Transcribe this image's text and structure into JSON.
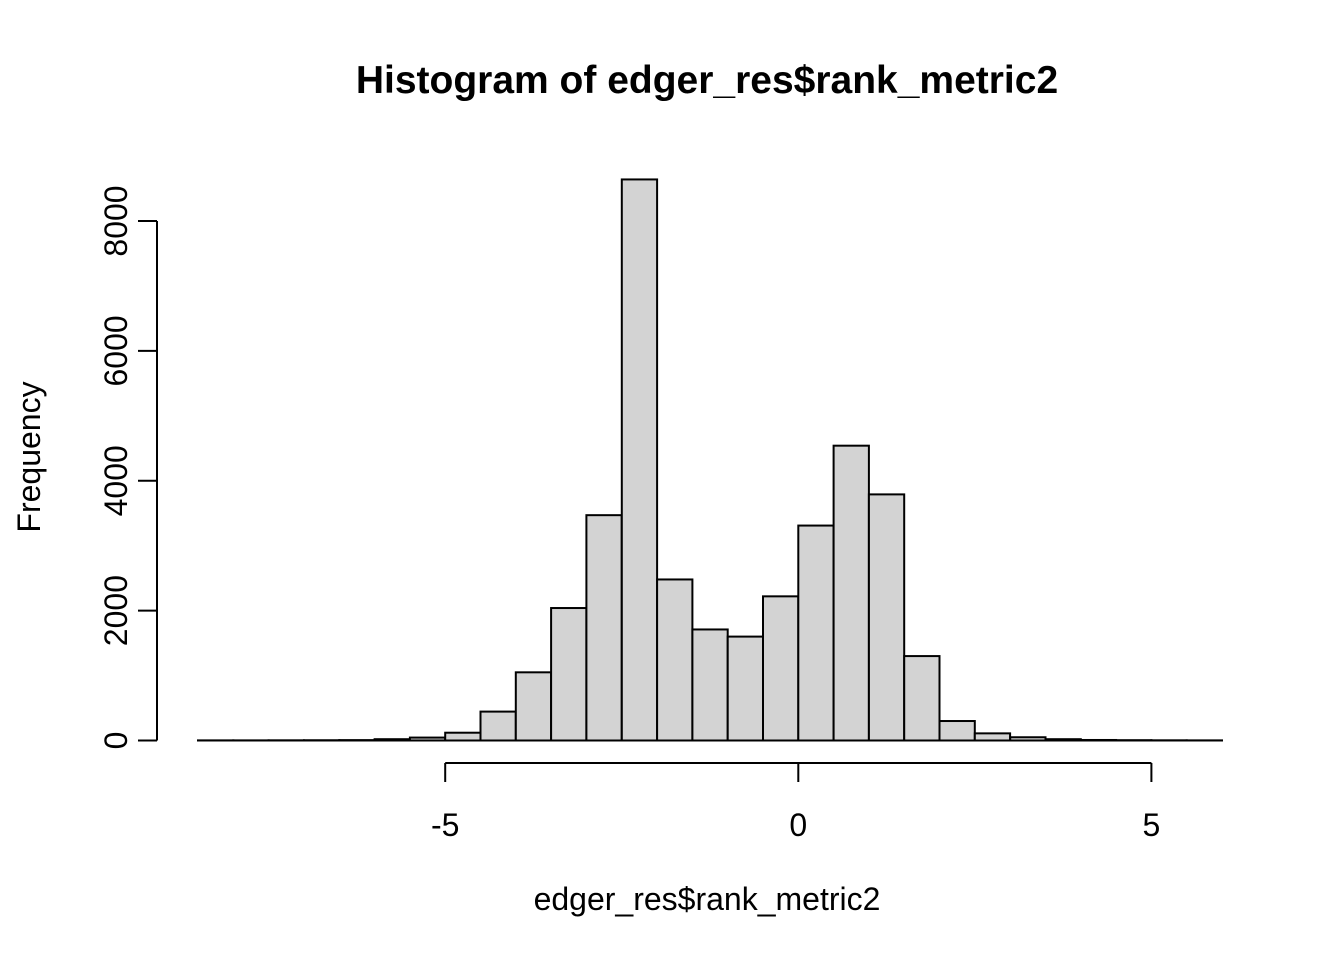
{
  "chart_data": {
    "type": "bar",
    "subtype": "histogram",
    "title": "Histogram of edger_res$rank_metric2",
    "xlabel": "edger_res$rank_metric2",
    "ylabel": "Frequency",
    "grid": false,
    "legend": "none",
    "bar_fill": "#d3d3d3",
    "bar_stroke": "#000000",
    "axis_color": "#000000",
    "background": "#ffffff",
    "bin_width": 0.5,
    "breaks_start": -8.5,
    "breaks_end": 6.0,
    "counts": [
      2,
      2,
      3,
      4,
      6,
      20,
      45,
      120,
      445,
      1050,
      2040,
      3470,
      8640,
      2480,
      1710,
      1600,
      2220,
      3310,
      4540,
      3790,
      1300,
      300,
      110,
      50,
      20,
      8,
      5,
      3,
      2
    ],
    "x_ticks": [
      -5,
      0,
      5
    ],
    "x_tick_labels": [
      "-5",
      "0",
      "5"
    ],
    "y_ticks": [
      0,
      2000,
      4000,
      6000,
      8000
    ],
    "y_tick_labels": [
      "0",
      "2000",
      "4000",
      "6000",
      "8000"
    ],
    "xlim": [
      -8.5,
      6.0
    ],
    "ylim": [
      0,
      8640
    ]
  }
}
